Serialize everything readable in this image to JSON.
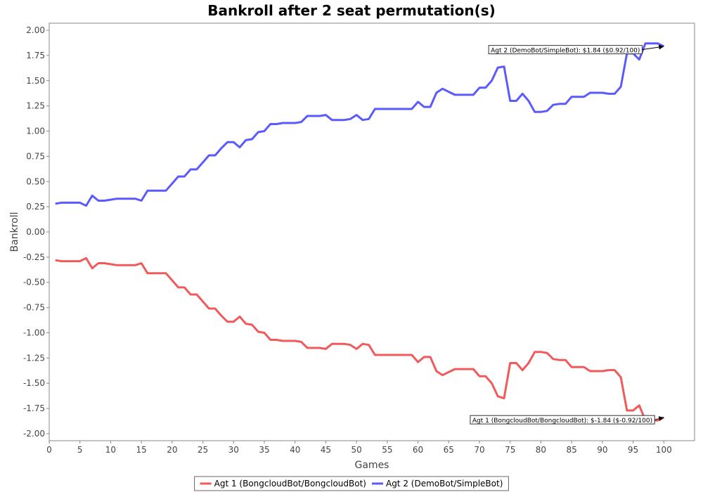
{
  "chart_data": {
    "type": "line",
    "title": "Bankroll after 2 seat permutation(s)",
    "xlabel": "Games",
    "ylabel": "Bankroll",
    "xlim": [
      0,
      105
    ],
    "ylim": [
      -2.07,
      2.07
    ],
    "xticks": [
      0,
      5,
      10,
      15,
      20,
      25,
      30,
      35,
      40,
      45,
      50,
      55,
      60,
      65,
      70,
      75,
      80,
      85,
      90,
      95,
      100
    ],
    "xtick_labels": [
      "0",
      "5",
      "10",
      "15",
      "20",
      "25",
      "30",
      "35",
      "40",
      "45",
      "50",
      "55",
      "60",
      "65",
      "70",
      "75",
      "80",
      "85",
      "90",
      "95",
      "100"
    ],
    "yticks": [
      -2.0,
      -1.75,
      -1.5,
      -1.25,
      -1.0,
      -0.75,
      -0.5,
      -0.25,
      0.0,
      0.25,
      0.5,
      0.75,
      1.0,
      1.25,
      1.5,
      1.75,
      2.0
    ],
    "ytick_labels": [
      "-2.00",
      "-1.75",
      "-1.50",
      "-1.25",
      "-1.00",
      "-0.75",
      "-0.50",
      "-0.25",
      "0.00",
      "0.25",
      "0.50",
      "0.75",
      "1.00",
      "1.25",
      "1.50",
      "1.75",
      "2.00"
    ],
    "grid": false,
    "legend_position": "bottom-center",
    "x": [
      1,
      2,
      3,
      4,
      5,
      6,
      7,
      8,
      9,
      10,
      11,
      12,
      13,
      14,
      15,
      16,
      17,
      18,
      19,
      20,
      21,
      22,
      23,
      24,
      25,
      26,
      27,
      28,
      29,
      30,
      31,
      32,
      33,
      34,
      35,
      36,
      37,
      38,
      39,
      40,
      41,
      42,
      43,
      44,
      45,
      46,
      47,
      48,
      49,
      50,
      51,
      52,
      53,
      54,
      55,
      56,
      57,
      58,
      59,
      60,
      61,
      62,
      63,
      64,
      65,
      66,
      67,
      68,
      69,
      70,
      71,
      72,
      73,
      74,
      75,
      76,
      77,
      78,
      79,
      80,
      81,
      82,
      83,
      84,
      85,
      86,
      87,
      88,
      89,
      90,
      91,
      92,
      93,
      94,
      95,
      96,
      97,
      98,
      99,
      100
    ],
    "series": [
      {
        "name": "Agt 1 (BongcloudBot/BongcloudBot)",
        "color": "#f05a5a",
        "values": [
          -0.28,
          -0.29,
          -0.29,
          -0.29,
          -0.29,
          -0.26,
          -0.36,
          -0.31,
          -0.31,
          -0.32,
          -0.33,
          -0.33,
          -0.33,
          -0.33,
          -0.31,
          -0.41,
          -0.41,
          -0.41,
          -0.41,
          -0.48,
          -0.55,
          -0.55,
          -0.62,
          -0.62,
          -0.69,
          -0.76,
          -0.76,
          -0.83,
          -0.89,
          -0.89,
          -0.84,
          -0.91,
          -0.92,
          -0.99,
          -1.0,
          -1.07,
          -1.07,
          -1.08,
          -1.08,
          -1.08,
          -1.09,
          -1.15,
          -1.15,
          -1.15,
          -1.16,
          -1.11,
          -1.11,
          -1.11,
          -1.12,
          -1.16,
          -1.11,
          -1.12,
          -1.22,
          -1.22,
          -1.22,
          -1.22,
          -1.22,
          -1.22,
          -1.22,
          -1.29,
          -1.24,
          -1.24,
          -1.38,
          -1.42,
          -1.39,
          -1.36,
          -1.36,
          -1.36,
          -1.36,
          -1.43,
          -1.43,
          -1.5,
          -1.63,
          -1.65,
          -1.3,
          -1.3,
          -1.37,
          -1.3,
          -1.19,
          -1.19,
          -1.2,
          -1.26,
          -1.27,
          -1.27,
          -1.34,
          -1.34,
          -1.34,
          -1.38,
          -1.38,
          -1.38,
          -1.37,
          -1.37,
          -1.44,
          -1.77,
          -1.77,
          -1.72,
          -1.87,
          -1.87,
          -1.87,
          -1.84
        ]
      },
      {
        "name": "Agt 2 (DemoBot/SimpleBot)",
        "color": "#5a5aff",
        "values": [
          0.28,
          0.29,
          0.29,
          0.29,
          0.29,
          0.26,
          0.36,
          0.31,
          0.31,
          0.32,
          0.33,
          0.33,
          0.33,
          0.33,
          0.31,
          0.41,
          0.41,
          0.41,
          0.41,
          0.48,
          0.55,
          0.55,
          0.62,
          0.62,
          0.69,
          0.76,
          0.76,
          0.83,
          0.89,
          0.89,
          0.84,
          0.91,
          0.92,
          0.99,
          1.0,
          1.07,
          1.07,
          1.08,
          1.08,
          1.08,
          1.09,
          1.15,
          1.15,
          1.15,
          1.16,
          1.11,
          1.11,
          1.11,
          1.12,
          1.16,
          1.11,
          1.12,
          1.22,
          1.22,
          1.22,
          1.22,
          1.22,
          1.22,
          1.22,
          1.29,
          1.24,
          1.24,
          1.38,
          1.42,
          1.39,
          1.36,
          1.36,
          1.36,
          1.36,
          1.43,
          1.43,
          1.5,
          1.63,
          1.64,
          1.3,
          1.3,
          1.37,
          1.3,
          1.19,
          1.19,
          1.2,
          1.26,
          1.27,
          1.27,
          1.34,
          1.34,
          1.34,
          1.38,
          1.38,
          1.38,
          1.37,
          1.37,
          1.44,
          1.77,
          1.77,
          1.71,
          1.87,
          1.87,
          1.87,
          1.84
        ]
      }
    ],
    "annotations": [
      {
        "text": "Agt 2 (DemoBot/SimpleBot): $1.84 ($0.92/100)",
        "target_x": 100,
        "target_y": 1.84,
        "anchor_x": 71.5,
        "anchor_y": 1.78
      },
      {
        "text": "Agt 1 (BongcloudBot/BongcloudBot): $-1.84 ($-0.92/100)",
        "target_x": 100,
        "target_y": -1.84,
        "anchor_x": 68.5,
        "anchor_y": -1.89
      }
    ]
  }
}
